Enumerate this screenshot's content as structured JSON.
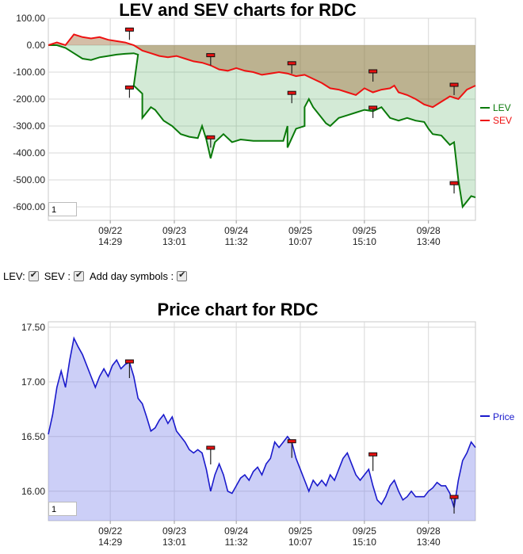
{
  "lev_chart": {
    "title": "LEV and SEV charts for RDC",
    "page_box": "1",
    "legend": [
      {
        "name": "LEV",
        "color": "#0a7a0a"
      },
      {
        "name": "SEV",
        "color": "#ee1111"
      }
    ],
    "chart_data": {
      "type": "line",
      "title": "LEV and SEV charts for RDC",
      "ylim": [
        -650,
        100
      ],
      "y_ticks": [
        "100.00",
        "0.00",
        "-100.00",
        "-200.00",
        "-300.00",
        "-400.00",
        "-500.00",
        "-600.00"
      ],
      "x_ticks": [
        {
          "date": "09/22",
          "time": "14:29"
        },
        {
          "date": "09/23",
          "time": "13:01"
        },
        {
          "date": "09/24",
          "time": "11:32"
        },
        {
          "date": "09/25",
          "time": "10:07"
        },
        {
          "date": "09/25",
          "time": "15:10"
        },
        {
          "date": "09/28",
          "time": "13:40"
        }
      ],
      "grid": true,
      "legend_position": "right",
      "series": [
        {
          "name": "LEV",
          "color": "#0a7a0a",
          "values": [
            [
              0,
              0
            ],
            [
              0.02,
              0
            ],
            [
              0.04,
              -10
            ],
            [
              0.06,
              -30
            ],
            [
              0.08,
              -50
            ],
            [
              0.1,
              -55
            ],
            [
              0.12,
              -45
            ],
            [
              0.14,
              -40
            ],
            [
              0.16,
              -35
            ],
            [
              0.18,
              -32
            ],
            [
              0.2,
              -30
            ],
            [
              0.21,
              -35
            ],
            [
              0.2,
              -150
            ],
            [
              0.22,
              -180
            ],
            [
              0.22,
              -270
            ],
            [
              0.24,
              -230
            ],
            [
              0.25,
              -240
            ],
            [
              0.27,
              -280
            ],
            [
              0.29,
              -300
            ],
            [
              0.31,
              -330
            ],
            [
              0.33,
              -340
            ],
            [
              0.35,
              -345
            ],
            [
              0.36,
              -300
            ],
            [
              0.37,
              -350
            ],
            [
              0.38,
              -420
            ],
            [
              0.39,
              -360
            ],
            [
              0.41,
              -330
            ],
            [
              0.43,
              -360
            ],
            [
              0.45,
              -350
            ],
            [
              0.48,
              -355
            ],
            [
              0.52,
              -355
            ],
            [
              0.55,
              -355
            ],
            [
              0.56,
              -300
            ],
            [
              0.56,
              -380
            ],
            [
              0.58,
              -310
            ],
            [
              0.6,
              -300
            ],
            [
              0.6,
              -230
            ],
            [
              0.61,
              -200
            ],
            [
              0.62,
              -230
            ],
            [
              0.63,
              -250
            ],
            [
              0.64,
              -270
            ],
            [
              0.65,
              -290
            ],
            [
              0.66,
              -300
            ],
            [
              0.68,
              -270
            ],
            [
              0.7,
              -260
            ],
            [
              0.72,
              -250
            ],
            [
              0.74,
              -240
            ],
            [
              0.76,
              -245
            ],
            [
              0.78,
              -230
            ],
            [
              0.79,
              -250
            ],
            [
              0.8,
              -270
            ],
            [
              0.82,
              -280
            ],
            [
              0.84,
              -270
            ],
            [
              0.86,
              -280
            ],
            [
              0.88,
              -285
            ],
            [
              0.89,
              -310
            ],
            [
              0.9,
              -330
            ],
            [
              0.92,
              -335
            ],
            [
              0.94,
              -370
            ],
            [
              0.95,
              -360
            ],
            [
              0.96,
              -500
            ],
            [
              0.97,
              -600
            ],
            [
              0.98,
              -580
            ],
            [
              0.99,
              -560
            ],
            [
              1,
              -565
            ]
          ]
        },
        {
          "name": "SEV",
          "color": "#ee1111",
          "values": [
            [
              0,
              0
            ],
            [
              0.02,
              10
            ],
            [
              0.04,
              0
            ],
            [
              0.06,
              40
            ],
            [
              0.08,
              30
            ],
            [
              0.1,
              25
            ],
            [
              0.12,
              30
            ],
            [
              0.14,
              20
            ],
            [
              0.16,
              15
            ],
            [
              0.18,
              10
            ],
            [
              0.2,
              0
            ],
            [
              0.21,
              -10
            ],
            [
              0.22,
              -20
            ],
            [
              0.24,
              -30
            ],
            [
              0.26,
              -40
            ],
            [
              0.28,
              -45
            ],
            [
              0.3,
              -40
            ],
            [
              0.32,
              -50
            ],
            [
              0.34,
              -60
            ],
            [
              0.36,
              -65
            ],
            [
              0.38,
              -75
            ],
            [
              0.4,
              -90
            ],
            [
              0.42,
              -95
            ],
            [
              0.44,
              -85
            ],
            [
              0.46,
              -95
            ],
            [
              0.48,
              -100
            ],
            [
              0.5,
              -110
            ],
            [
              0.52,
              -105
            ],
            [
              0.54,
              -100
            ],
            [
              0.56,
              -105
            ],
            [
              0.58,
              -115
            ],
            [
              0.6,
              -110
            ],
            [
              0.62,
              -125
            ],
            [
              0.64,
              -140
            ],
            [
              0.66,
              -160
            ],
            [
              0.68,
              -165
            ],
            [
              0.7,
              -175
            ],
            [
              0.72,
              -185
            ],
            [
              0.74,
              -160
            ],
            [
              0.76,
              -175
            ],
            [
              0.78,
              -165
            ],
            [
              0.8,
              -160
            ],
            [
              0.81,
              -150
            ],
            [
              0.82,
              -175
            ],
            [
              0.84,
              -185
            ],
            [
              0.86,
              -200
            ],
            [
              0.88,
              -220
            ],
            [
              0.9,
              -230
            ],
            [
              0.92,
              -210
            ],
            [
              0.94,
              -190
            ],
            [
              0.96,
              -200
            ],
            [
              0.98,
              -165
            ],
            [
              1,
              -150
            ]
          ]
        }
      ],
      "day_markers": [
        {
          "x": 0.19,
          "y": 55
        },
        {
          "x": 0.19,
          "y": -160
        },
        {
          "x": 0.38,
          "y": -40
        },
        {
          "x": 0.38,
          "y": -345
        },
        {
          "x": 0.57,
          "y": -70
        },
        {
          "x": 0.57,
          "y": -180
        },
        {
          "x": 0.76,
          "y": -100
        },
        {
          "x": 0.76,
          "y": -235
        },
        {
          "x": 0.95,
          "y": -150
        },
        {
          "x": 0.95,
          "y": -515
        }
      ]
    }
  },
  "controls": {
    "lev_label": "LEV:",
    "sev_label": "SEV :",
    "day_symbols_label": "Add day symbols :"
  },
  "price_chart": {
    "title": "Price chart for RDC",
    "page_box": "1",
    "legend": [
      {
        "name": "Price",
        "color": "#1a1acc"
      }
    ],
    "chart_data": {
      "type": "area",
      "title": "Price chart for RDC",
      "ylim": [
        15.73,
        17.55
      ],
      "y_ticks": [
        "17.50",
        "17.00",
        "16.50",
        "16.00"
      ],
      "x_ticks": [
        {
          "date": "09/22",
          "time": "14:29"
        },
        {
          "date": "09/23",
          "time": "13:01"
        },
        {
          "date": "09/24",
          "time": "11:32"
        },
        {
          "date": "09/25",
          "time": "10:07"
        },
        {
          "date": "09/25",
          "time": "15:10"
        },
        {
          "date": "09/28",
          "time": "13:40"
        }
      ],
      "grid": true,
      "legend_position": "right",
      "series": [
        {
          "name": "Price",
          "color": "#1a1acc",
          "values": [
            [
              0,
              16.52
            ],
            [
              0.01,
              16.7
            ],
            [
              0.02,
              16.95
            ],
            [
              0.03,
              17.1
            ],
            [
              0.04,
              16.95
            ],
            [
              0.05,
              17.2
            ],
            [
              0.06,
              17.4
            ],
            [
              0.07,
              17.32
            ],
            [
              0.08,
              17.25
            ],
            [
              0.09,
              17.15
            ],
            [
              0.1,
              17.05
            ],
            [
              0.11,
              16.95
            ],
            [
              0.12,
              17.05
            ],
            [
              0.13,
              17.12
            ],
            [
              0.14,
              17.05
            ],
            [
              0.15,
              17.15
            ],
            [
              0.16,
              17.2
            ],
            [
              0.17,
              17.12
            ],
            [
              0.18,
              17.16
            ],
            [
              0.19,
              17.18
            ],
            [
              0.2,
              17.05
            ],
            [
              0.21,
              16.85
            ],
            [
              0.22,
              16.8
            ],
            [
              0.23,
              16.68
            ],
            [
              0.24,
              16.55
            ],
            [
              0.25,
              16.58
            ],
            [
              0.26,
              16.65
            ],
            [
              0.27,
              16.7
            ],
            [
              0.28,
              16.62
            ],
            [
              0.29,
              16.68
            ],
            [
              0.3,
              16.55
            ],
            [
              0.31,
              16.5
            ],
            [
              0.32,
              16.45
            ],
            [
              0.33,
              16.38
            ],
            [
              0.34,
              16.35
            ],
            [
              0.35,
              16.38
            ],
            [
              0.36,
              16.35
            ],
            [
              0.37,
              16.2
            ],
            [
              0.38,
              16.0
            ],
            [
              0.39,
              16.15
            ],
            [
              0.4,
              16.25
            ],
            [
              0.41,
              16.15
            ],
            [
              0.42,
              16.0
            ],
            [
              0.43,
              15.98
            ],
            [
              0.44,
              16.05
            ],
            [
              0.45,
              16.12
            ],
            [
              0.46,
              16.15
            ],
            [
              0.47,
              16.1
            ],
            [
              0.48,
              16.18
            ],
            [
              0.49,
              16.22
            ],
            [
              0.5,
              16.15
            ],
            [
              0.51,
              16.25
            ],
            [
              0.52,
              16.3
            ],
            [
              0.53,
              16.45
            ],
            [
              0.54,
              16.4
            ],
            [
              0.55,
              16.45
            ],
            [
              0.56,
              16.5
            ],
            [
              0.57,
              16.45
            ],
            [
              0.58,
              16.3
            ],
            [
              0.59,
              16.2
            ],
            [
              0.6,
              16.1
            ],
            [
              0.61,
              16.0
            ],
            [
              0.62,
              16.1
            ],
            [
              0.63,
              16.05
            ],
            [
              0.64,
              16.1
            ],
            [
              0.65,
              16.05
            ],
            [
              0.66,
              16.15
            ],
            [
              0.67,
              16.1
            ],
            [
              0.68,
              16.2
            ],
            [
              0.69,
              16.3
            ],
            [
              0.7,
              16.35
            ],
            [
              0.71,
              16.25
            ],
            [
              0.72,
              16.15
            ],
            [
              0.73,
              16.1
            ],
            [
              0.74,
              16.15
            ],
            [
              0.75,
              16.2
            ],
            [
              0.76,
              16.05
            ],
            [
              0.77,
              15.92
            ],
            [
              0.78,
              15.88
            ],
            [
              0.79,
              15.95
            ],
            [
              0.8,
              16.05
            ],
            [
              0.81,
              16.1
            ],
            [
              0.82,
              16.0
            ],
            [
              0.83,
              15.92
            ],
            [
              0.84,
              15.95
            ],
            [
              0.85,
              16.0
            ],
            [
              0.86,
              15.95
            ],
            [
              0.87,
              15.95
            ],
            [
              0.88,
              15.95
            ],
            [
              0.89,
              16.0
            ],
            [
              0.9,
              16.03
            ],
            [
              0.91,
              16.08
            ],
            [
              0.92,
              16.05
            ],
            [
              0.93,
              16.05
            ],
            [
              0.94,
              15.98
            ],
            [
              0.95,
              15.85
            ],
            [
              0.96,
              16.1
            ],
            [
              0.97,
              16.28
            ],
            [
              0.98,
              16.35
            ],
            [
              0.99,
              16.45
            ],
            [
              1,
              16.4
            ]
          ]
        }
      ],
      "day_markers": [
        {
          "x": 0.19,
          "y": 17.18
        },
        {
          "x": 0.38,
          "y": 16.39
        },
        {
          "x": 0.57,
          "y": 16.45
        },
        {
          "x": 0.76,
          "y": 16.33
        },
        {
          "x": 0.95,
          "y": 15.94
        }
      ]
    }
  }
}
